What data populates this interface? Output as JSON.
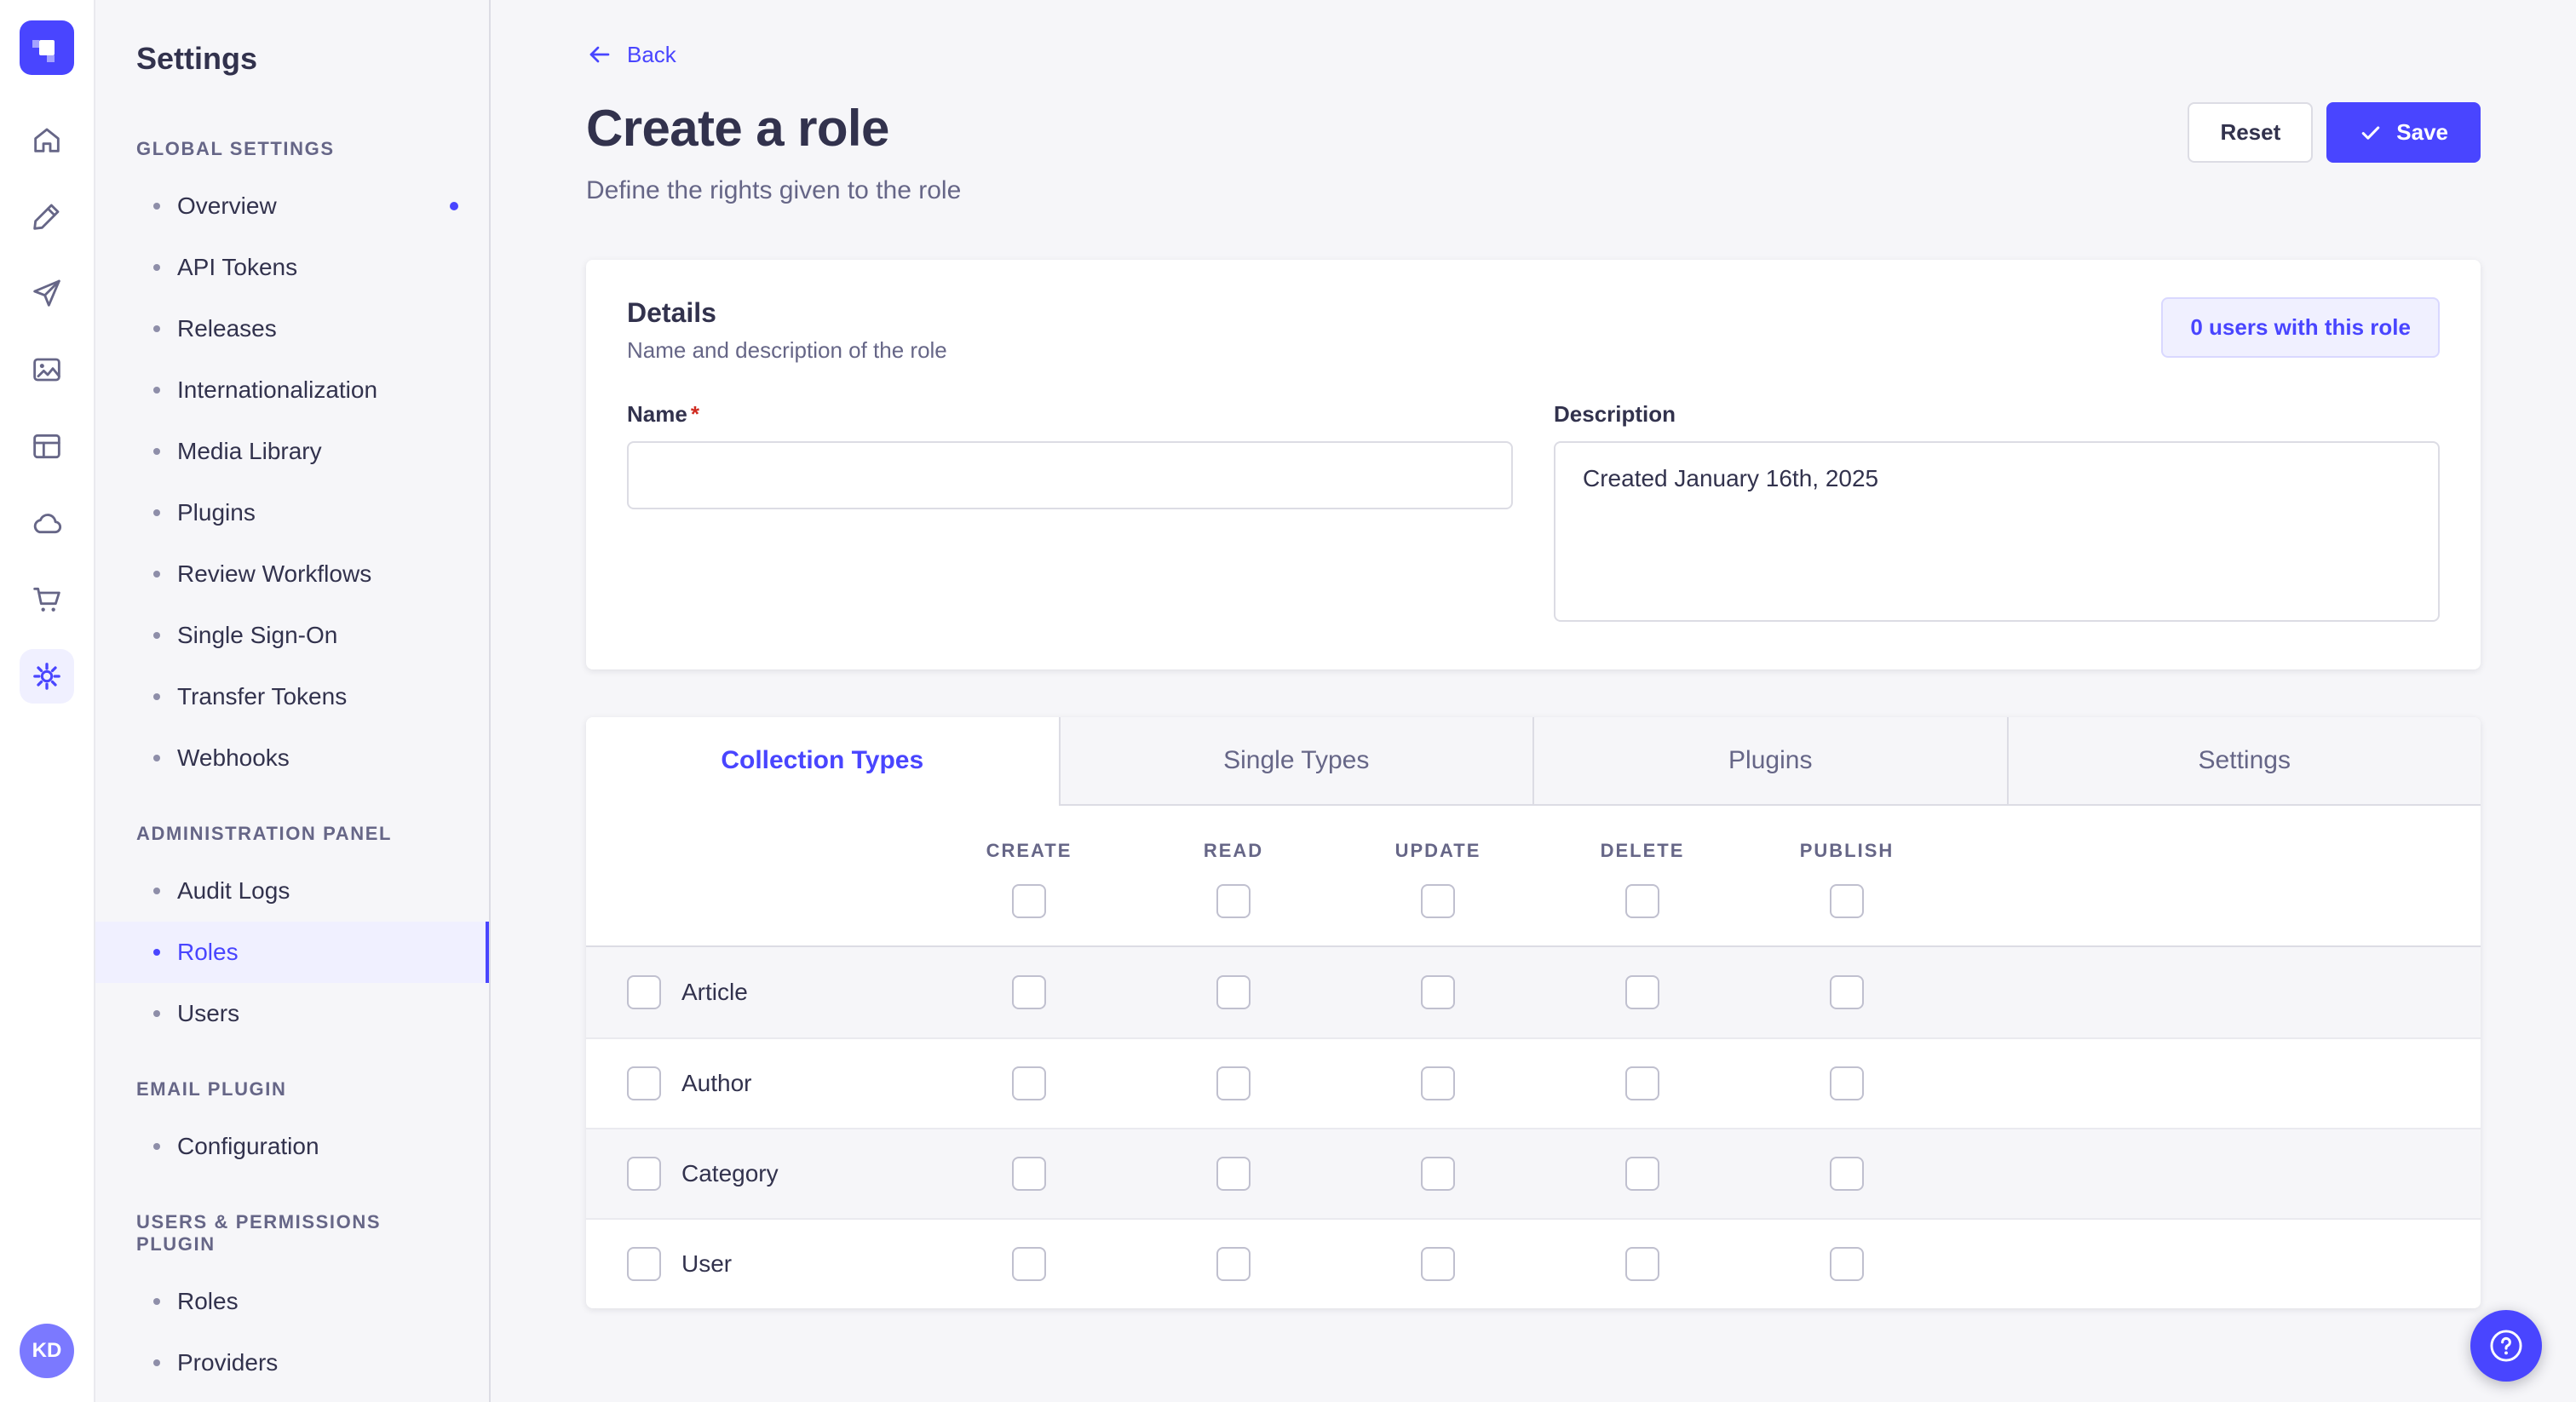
{
  "colors": {
    "primary": "#4945ff",
    "primary_light": "#f0f0ff",
    "text": "#32324d",
    "text_muted": "#666687"
  },
  "icon_rail": {
    "logo_icon": "strapi-logo",
    "items": [
      {
        "icon": "home-icon",
        "active": false
      },
      {
        "icon": "content-type-builder-icon",
        "active": false
      },
      {
        "icon": "releases-icon",
        "active": false
      },
      {
        "icon": "media-library-icon",
        "active": false
      },
      {
        "icon": "content-manager-icon",
        "active": false
      },
      {
        "icon": "cloud-icon",
        "active": false
      },
      {
        "icon": "marketplace-icon",
        "active": false
      },
      {
        "icon": "settings-icon",
        "active": true
      }
    ],
    "avatar_initials": "KD"
  },
  "settings_nav": {
    "title": "Settings",
    "sections": [
      {
        "heading": "GLOBAL SETTINGS",
        "items": [
          {
            "label": "Overview",
            "notification": true
          },
          {
            "label": "API Tokens"
          },
          {
            "label": "Releases"
          },
          {
            "label": "Internationalization"
          },
          {
            "label": "Media Library"
          },
          {
            "label": "Plugins"
          },
          {
            "label": "Review Workflows"
          },
          {
            "label": "Single Sign-On"
          },
          {
            "label": "Transfer Tokens"
          },
          {
            "label": "Webhooks"
          }
        ]
      },
      {
        "heading": "ADMINISTRATION PANEL",
        "items": [
          {
            "label": "Audit Logs"
          },
          {
            "label": "Roles",
            "active": true
          },
          {
            "label": "Users"
          }
        ]
      },
      {
        "heading": "EMAIL PLUGIN",
        "items": [
          {
            "label": "Configuration"
          }
        ]
      },
      {
        "heading": "USERS & PERMISSIONS PLUGIN",
        "items": [
          {
            "label": "Roles"
          },
          {
            "label": "Providers"
          }
        ]
      }
    ]
  },
  "header": {
    "back_label": "Back",
    "title": "Create a role",
    "subtitle": "Define the rights given to the role",
    "reset_label": "Reset",
    "save_label": "Save"
  },
  "details": {
    "title": "Details",
    "subtitle": "Name and description of the role",
    "users_button_label": "0 users with this role",
    "name_label": "Name",
    "name_required_mark": "*",
    "name_value": "",
    "description_label": "Description",
    "description_value": "Created January 16th, 2025"
  },
  "permissions": {
    "tabs": [
      {
        "label": "Collection Types",
        "active": true
      },
      {
        "label": "Single Types",
        "active": false
      },
      {
        "label": "Plugins",
        "active": false
      },
      {
        "label": "Settings",
        "active": false
      }
    ],
    "columns": [
      "CREATE",
      "READ",
      "UPDATE",
      "DELETE",
      "PUBLISH"
    ],
    "select_all_checked": [
      false,
      false,
      false,
      false,
      false
    ],
    "rows": [
      {
        "label": "Article",
        "row_checked": false,
        "values": [
          false,
          false,
          false,
          false,
          false
        ]
      },
      {
        "label": "Author",
        "row_checked": false,
        "values": [
          false,
          false,
          false,
          false,
          false
        ]
      },
      {
        "label": "Category",
        "row_checked": false,
        "values": [
          false,
          false,
          false,
          false,
          false
        ]
      },
      {
        "label": "User",
        "row_checked": false,
        "values": [
          false,
          false,
          false,
          false,
          false
        ]
      }
    ]
  },
  "help": {
    "icon": "help-icon"
  }
}
